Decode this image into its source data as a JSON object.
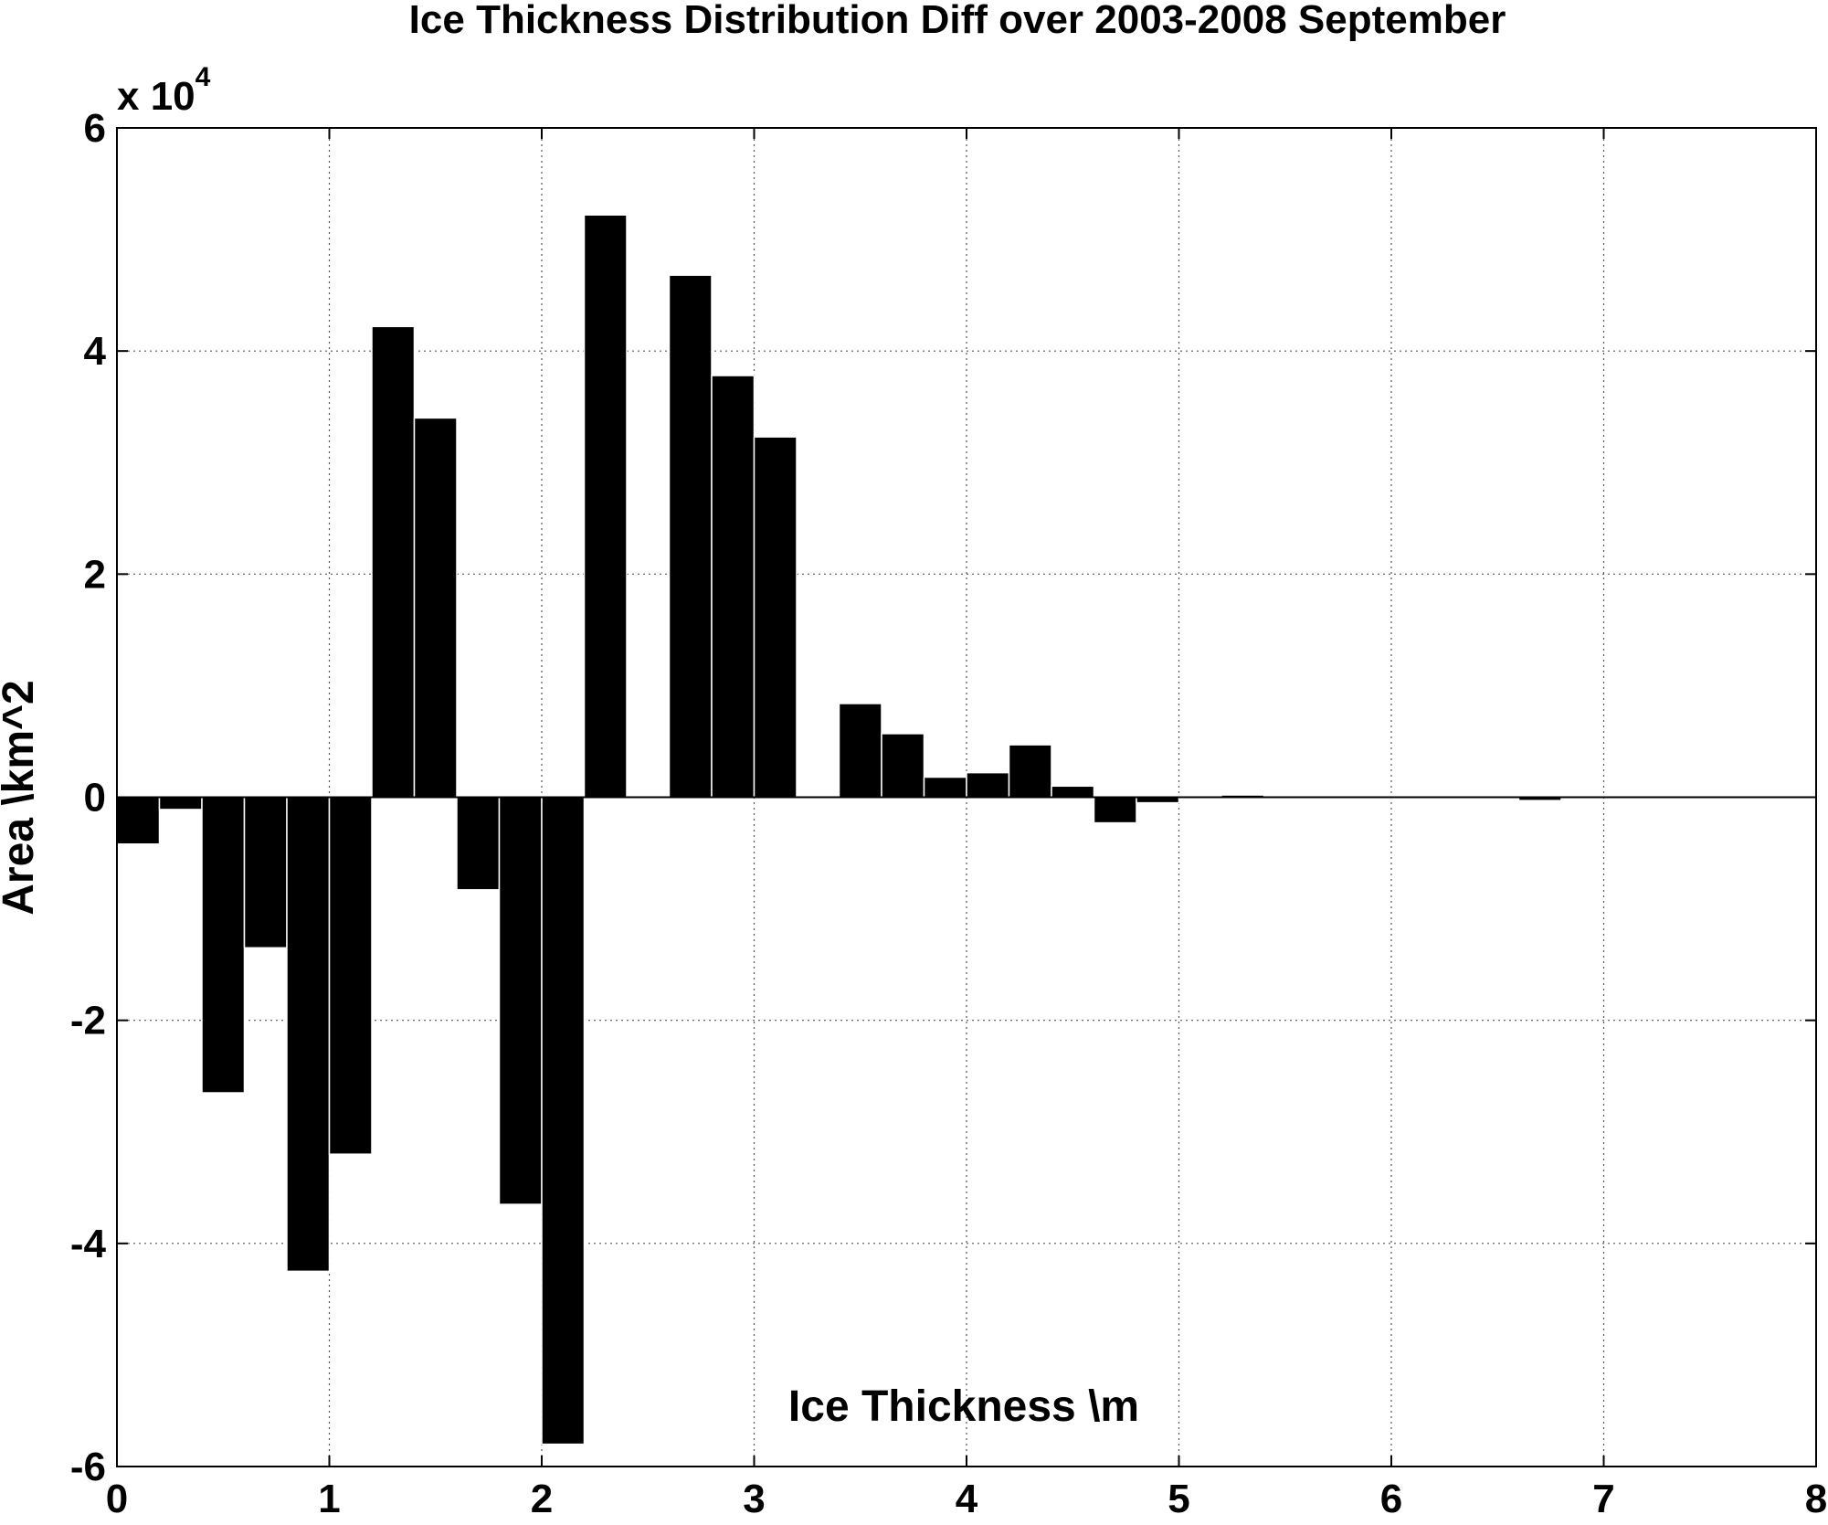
{
  "chart_data": {
    "type": "bar",
    "title": "Ice Thickness Distribution Diff over 2003-2008 September",
    "xlabel": "Ice Thickness \\m",
    "ylabel": "Area \\km^2",
    "y_exponent_prefix": "x 10",
    "y_exponent_power": "4",
    "xlim": [
      0,
      8
    ],
    "ylim": [
      -6,
      6
    ],
    "x_ticks": [
      "0",
      "1",
      "2",
      "3",
      "4",
      "5",
      "6",
      "7",
      "8"
    ],
    "y_ticks": [
      "-6",
      "-4",
      "-2",
      "0",
      "2",
      "4",
      "6"
    ],
    "grid": true,
    "bar_width": 0.2,
    "x": [
      0.1,
      0.3,
      0.5,
      0.7,
      0.9,
      1.1,
      1.3,
      1.5,
      1.7,
      1.9,
      2.1,
      2.3,
      2.5,
      2.7,
      2.9,
      3.1,
      3.3,
      3.5,
      3.7,
      3.9,
      4.1,
      4.3,
      4.5,
      4.7,
      4.9,
      5.1,
      5.3,
      5.5,
      5.7,
      5.9,
      6.1,
      6.3,
      6.5,
      6.7,
      6.9
    ],
    "values": [
      -0.42,
      -0.11,
      -2.65,
      -1.35,
      -4.25,
      -3.2,
      4.22,
      3.4,
      -0.83,
      -3.65,
      -5.8,
      5.22,
      0,
      4.68,
      3.78,
      3.23,
      0,
      0.84,
      0.57,
      0.18,
      0.22,
      0.47,
      0.1,
      -0.23,
      -0.05,
      -0.01,
      0.02,
      0,
      0,
      0,
      -0.01,
      0,
      0,
      -0.03,
      0
    ]
  }
}
